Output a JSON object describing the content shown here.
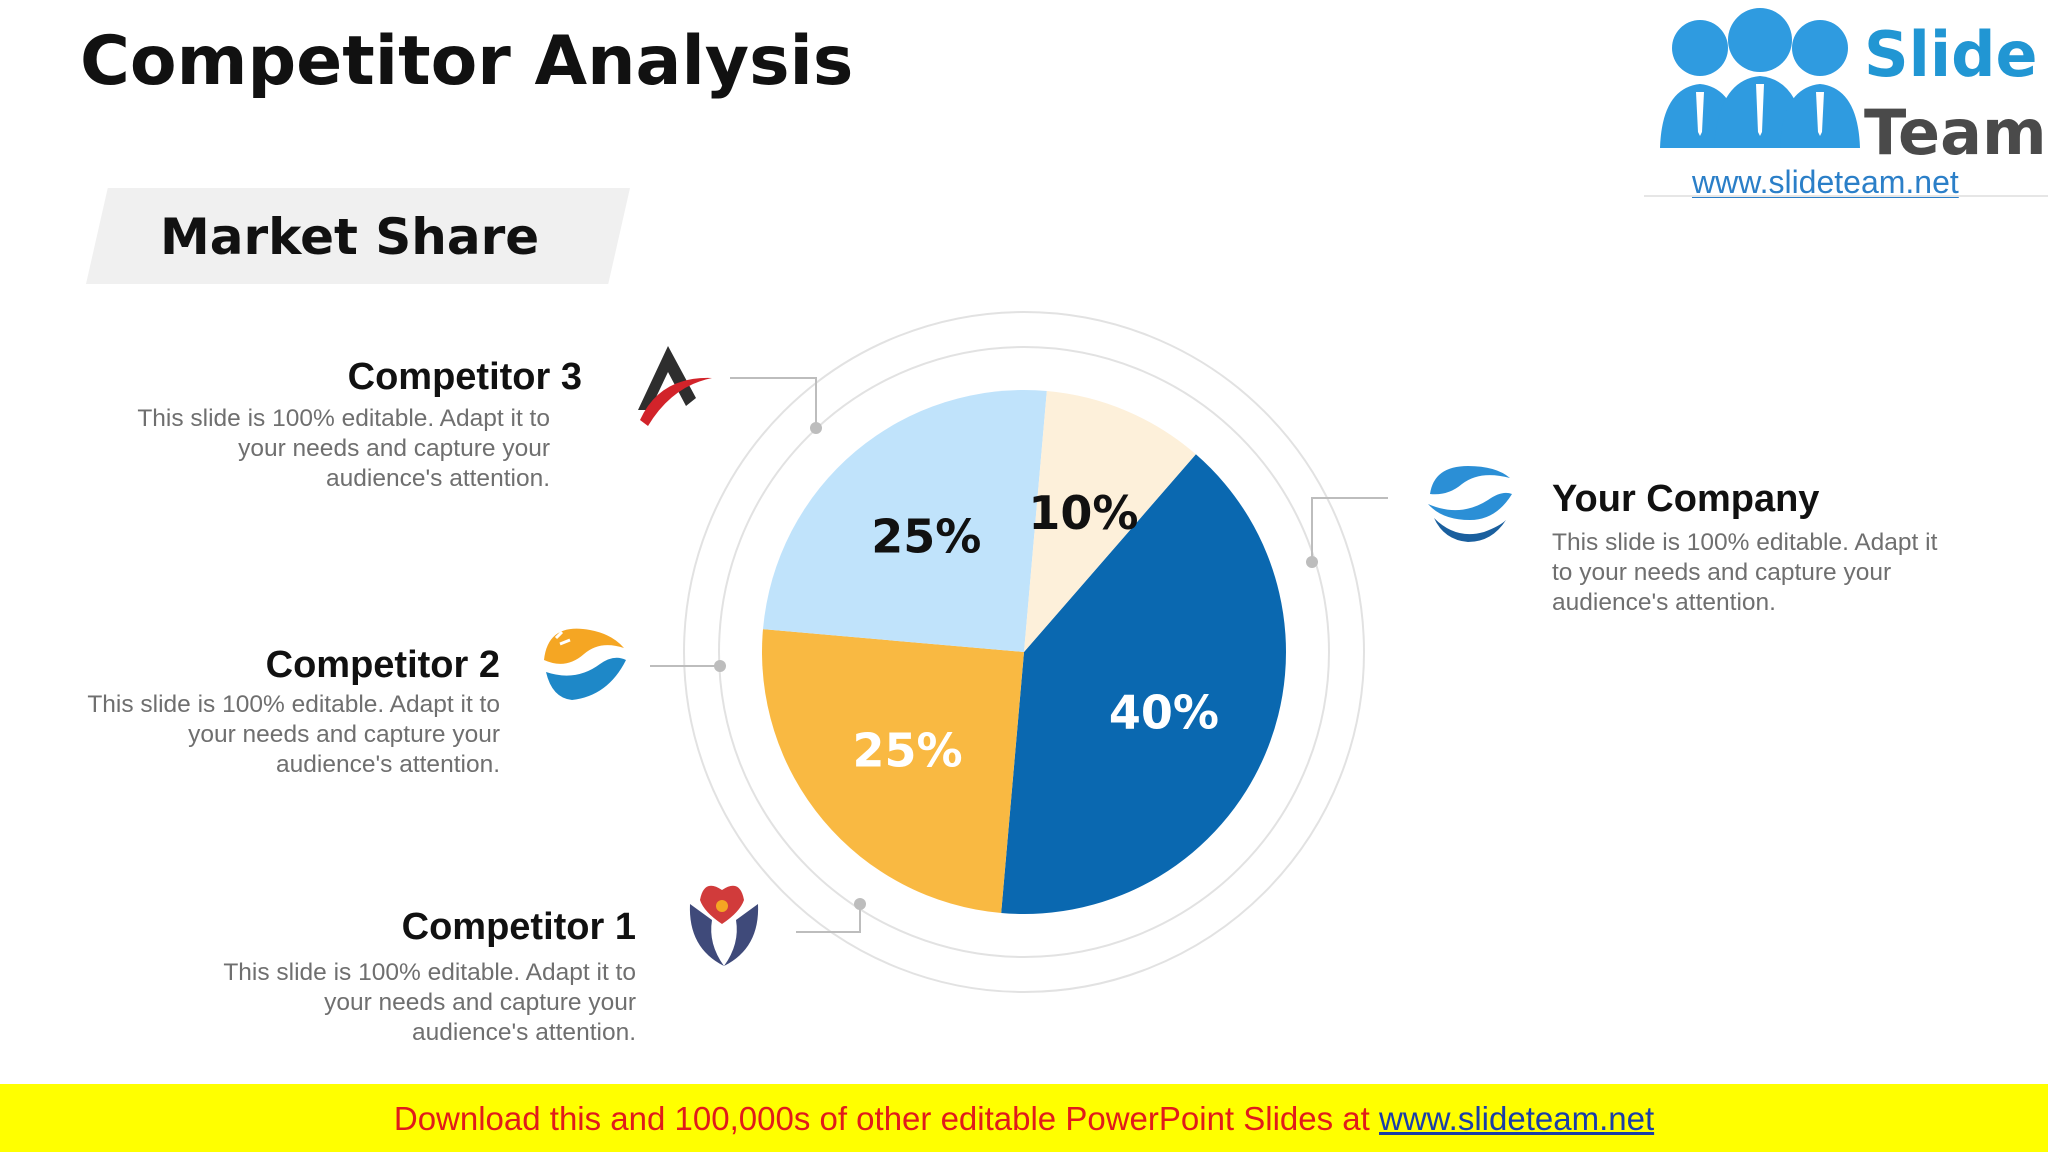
{
  "title": "Competitor Analysis",
  "subtitle": "Market Share",
  "brand": {
    "name_line1": "Slide",
    "name_line2": "Team",
    "url": "www.slideteam.net",
    "primary_color": "#2196d3"
  },
  "competitors": [
    {
      "name": "Competitor 3",
      "desc": "This slide is 100% editable. Adapt it to your needs and capture your audience's attention.",
      "icon": "arrow-a-logo-icon"
    },
    {
      "name": "Competitor 2",
      "desc": "This slide is 100% editable. Adapt it to your needs and capture your audience's attention.",
      "icon": "wave-orange-logo-icon"
    },
    {
      "name": "Competitor 1",
      "desc": "This slide is 100% editable. Adapt it to your needs and capture your audience's attention.",
      "icon": "hands-heart-logo-icon"
    },
    {
      "name": "Your Company",
      "desc": "This slide is 100% editable. Adapt it to your needs and capture your audience's attention.",
      "icon": "wave-blue-logo-icon"
    }
  ],
  "footer": {
    "text": "Download this and 100,000s of other editable PowerPoint Slides at ",
    "link": "www.slideteam.net"
  },
  "chart_data": {
    "type": "pie",
    "title": "",
    "start_angle_deg": -49,
    "direction": "clockwise",
    "slices": [
      {
        "label": "40%",
        "value": 40,
        "color": "#0a68b0",
        "text_color": "#ffffff"
      },
      {
        "label": "25%",
        "value": 25,
        "color": "#f9b942",
        "text_color": "#ffffff"
      },
      {
        "label": "25%",
        "value": 25,
        "color": "#c0e3fb",
        "text_color": "#111111"
      },
      {
        "label": "10%",
        "value": 10,
        "color": "#fdf0da",
        "text_color": "#111111"
      }
    ]
  }
}
